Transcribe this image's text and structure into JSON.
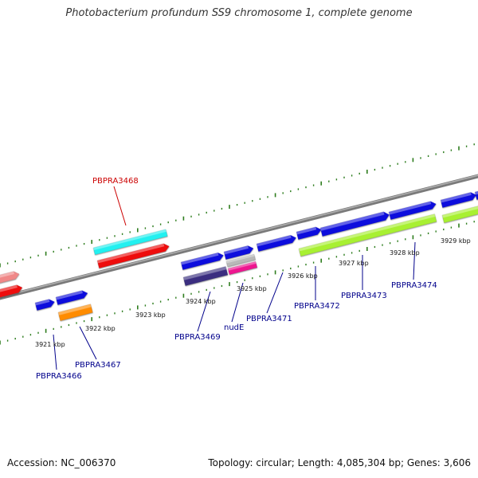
{
  "title": "Photobacterium profundum SS9 chromosome 1, complete genome",
  "accession": "Accession: NC_006370",
  "topology": "Topology: circular; Length: 4,085,304 bp; Genes: 3,606",
  "colors": {
    "backbone": "#8c8c8c",
    "tick": "#2e7d1e",
    "label_highlight": "#cc0000",
    "label_normal": "#00008b",
    "blue": "#1010dd",
    "red": "#ee0a0a",
    "cyan": "#22f0f0",
    "lime": "#a8f030",
    "orange": "#ff8c00",
    "navy": "#3a2f80",
    "pink": "#ee1490",
    "grey": "#b8b8b8",
    "salmon": "#f08888"
  },
  "scale": {
    "labels": [
      "3921 kbp",
      "3922 kbp",
      "3923 kbp",
      "3924 kbp",
      "3925 kbp",
      "3926 kbp",
      "3927 kbp",
      "3928 kbp",
      "3929 kbp"
    ]
  },
  "genes": [
    {
      "name": "PBPRA3468",
      "highlight": true
    },
    {
      "name": "PBPRA3466",
      "highlight": false
    },
    {
      "name": "PBPRA3467",
      "highlight": false
    },
    {
      "name": "PBPRA3469",
      "highlight": false
    },
    {
      "name": "nudE",
      "highlight": false
    },
    {
      "name": "PBPRA3471",
      "highlight": false
    },
    {
      "name": "PBPRA3472",
      "highlight": false
    },
    {
      "name": "PBPRA3473",
      "highlight": false
    },
    {
      "name": "PBPRA3474",
      "highlight": false
    }
  ]
}
